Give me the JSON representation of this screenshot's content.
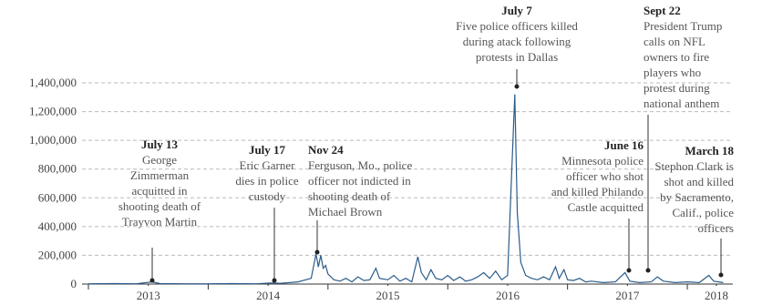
{
  "chart_data": {
    "type": "line",
    "x": [
      2013.0,
      2013.2,
      2013.4,
      2013.53,
      2013.6,
      2013.8,
      2014.0,
      2014.2,
      2014.4,
      2014.54,
      2014.6,
      2014.75,
      2014.86,
      2014.9,
      2014.92,
      2014.94,
      2014.96,
      2014.98,
      2015.0,
      2015.05,
      2015.1,
      2015.15,
      2015.2,
      2015.25,
      2015.3,
      2015.35,
      2015.4,
      2015.43,
      2015.5,
      2015.55,
      2015.6,
      2015.65,
      2015.7,
      2015.75,
      2015.78,
      2015.82,
      2015.86,
      2015.9,
      2015.95,
      2016.0,
      2016.05,
      2016.1,
      2016.15,
      2016.2,
      2016.25,
      2016.3,
      2016.35,
      2016.4,
      2016.45,
      2016.5,
      2016.56,
      2016.58,
      2016.61,
      2016.65,
      2016.7,
      2016.75,
      2016.8,
      2016.85,
      2016.9,
      2016.93,
      2016.97,
      2017.0,
      2017.05,
      2017.1,
      2017.15,
      2017.2,
      2017.3,
      2017.4,
      2017.48,
      2017.52,
      2017.6,
      2017.7,
      2017.75,
      2017.8,
      2017.9,
      2018.0,
      2018.1,
      2018.18,
      2018.22,
      2018.3
    ],
    "series": [
      {
        "color": "#2b5c8a",
        "values": [
          2000,
          3000,
          2000,
          15000,
          3000,
          2000,
          2000,
          3000,
          2000,
          8000,
          5000,
          15000,
          40000,
          210000,
          120000,
          200000,
          110000,
          130000,
          70000,
          30000,
          20000,
          40000,
          15000,
          50000,
          25000,
          30000,
          110000,
          40000,
          30000,
          60000,
          20000,
          40000,
          15000,
          190000,
          80000,
          30000,
          100000,
          40000,
          30000,
          60000,
          25000,
          50000,
          20000,
          30000,
          50000,
          80000,
          40000,
          90000,
          30000,
          60000,
          1320000,
          500000,
          150000,
          60000,
          40000,
          30000,
          50000,
          30000,
          120000,
          40000,
          100000,
          30000,
          25000,
          40000,
          15000,
          20000,
          10000,
          15000,
          80000,
          20000,
          10000,
          15000,
          50000,
          20000,
          10000,
          15000,
          10000,
          60000,
          20000,
          10000
        ]
      }
    ],
    "xlim": [
      2013.0,
      2018.38
    ],
    "xticks": [
      {
        "value": 2013.5,
        "label": "2013"
      },
      {
        "value": 2014.5,
        "label": "2014"
      },
      {
        "value": 2015.5,
        "label": "2015"
      },
      {
        "value": 2016.5,
        "label": "2016"
      },
      {
        "value": 2017.5,
        "label": "2017"
      },
      {
        "value": 2018.5,
        "label": "2018"
      }
    ],
    "ylim": [
      0,
      1400000
    ],
    "yticks": [
      0,
      {
        "value": 200000,
        "label": "200,000"
      },
      {
        "value": 400000,
        "label": "400,000"
      },
      {
        "value": 600000,
        "label": "600,000"
      },
      {
        "value": 800000,
        "label": "800,000"
      },
      {
        "value": 1000000,
        "label": "1,000,000"
      },
      {
        "value": 1200000,
        "label": "1,200,000"
      },
      {
        "value": 1400000,
        "label": "1,400,000"
      }
    ],
    "grid": true,
    "annotations": [
      {
        "date": "July 13",
        "lines": [
          "George",
          "Zimmerman",
          "acquitted in",
          "shooting death of",
          "Trayvon Martin"
        ]
      },
      {
        "date": "July 17",
        "lines": [
          "Eric Garner",
          "dies in police",
          "custody"
        ]
      },
      {
        "date": "Nov 24",
        "lines": [
          "Ferguson, Mo., police",
          "officer not indicted in",
          "shooting death of",
          "Michael Brown"
        ]
      },
      {
        "date": "July 7",
        "lines": [
          "Five police officers killed",
          "during atack following",
          "protests in Dallas"
        ]
      },
      {
        "date": "June 16",
        "lines": [
          "Minnesota police",
          "officer who shot",
          "and killed Philando",
          "Castle acquitted"
        ]
      },
      {
        "date": "Sept 22",
        "lines": [
          "President Trump",
          "calls on NFL",
          "owners to fire",
          "players who",
          "protest during",
          "national anthem"
        ]
      },
      {
        "date": "March 18",
        "lines": [
          "Stephon Clark is",
          "shot and killed",
          "by Sacramento,",
          "Calif., police",
          "officers"
        ]
      }
    ]
  }
}
